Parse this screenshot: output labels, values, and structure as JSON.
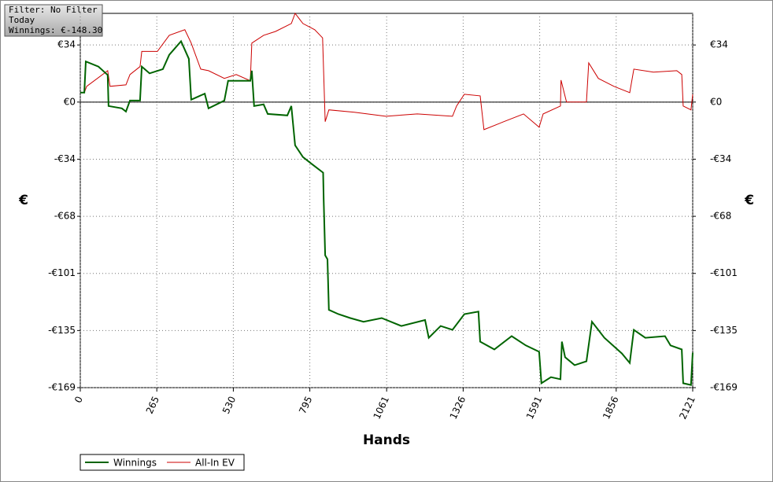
{
  "chart_data": {
    "type": "line",
    "annotations": [
      "Filter: No Filter",
      "Today",
      "Winnings: €-148.30"
    ],
    "xlabel": "Hands",
    "ylabel": "€",
    "y2label": "€",
    "xlim": [
      0,
      2121
    ],
    "ylim": [
      -169,
      52.5
    ],
    "xticks": [
      0,
      265,
      530,
      795,
      1061,
      1326,
      1591,
      1856,
      2121
    ],
    "yticks": [
      {
        "value": 33.8,
        "label": "€34"
      },
      {
        "value": 0,
        "label": "€0"
      },
      {
        "value": -33.8,
        "label": "-€34"
      },
      {
        "value": -67.6,
        "label": "-€68"
      },
      {
        "value": -101.4,
        "label": "-€101"
      },
      {
        "value": -135.2,
        "label": "-€135"
      },
      {
        "value": -169,
        "label": "-€169"
      }
    ],
    "grid": true,
    "zero_line": true,
    "legend": "bottom-left",
    "series": [
      {
        "name": "Winnings",
        "color": "#006400",
        "x": [
          0,
          14,
          19,
          63,
          95,
          98,
          144,
          158,
          172,
          207,
          213,
          240,
          286,
          308,
          349,
          376,
          384,
          431,
          444,
          499,
          512,
          589,
          594,
          602,
          635,
          649,
          717,
          731,
          744,
          771,
          799,
          841,
          843,
          848,
          856,
          861,
          894,
          935,
          981,
          1044,
          1112,
          1194,
          1207,
          1248,
          1289,
          1330,
          1379,
          1385,
          1434,
          1494,
          1543,
          1589,
          1597,
          1630,
          1663,
          1668,
          1679,
          1712,
          1753,
          1772,
          1815,
          1876,
          1903,
          1917,
          1957,
          2025,
          2044,
          2083,
          2088,
          2115,
          2121
        ],
        "values": [
          5.6,
          5.6,
          24,
          21,
          16,
          -2.3,
          -3.7,
          -5.6,
          0.9,
          0.9,
          21,
          17,
          19.5,
          28,
          36,
          25.6,
          1.4,
          5,
          -3.7,
          0.9,
          12.6,
          12.6,
          18.6,
          -2.3,
          -1.4,
          -7,
          -7.9,
          -2.3,
          -25.6,
          -32.5,
          -36.3,
          -41.8,
          -58,
          -90.7,
          -93,
          -123,
          -125.5,
          -127.8,
          -130,
          -127.8,
          -132.5,
          -129,
          -139.5,
          -132.5,
          -134.8,
          -125.5,
          -124,
          -141.8,
          -146.4,
          -138.5,
          -144,
          -147.8,
          -166.4,
          -162.8,
          -164,
          -141.8,
          -151,
          -155.7,
          -153.4,
          -130,
          -139.5,
          -148.8,
          -154.4,
          -134.8,
          -139.5,
          -138.5,
          -144,
          -146.4,
          -166.4,
          -167.4,
          -148.3
        ]
      },
      {
        "name": "All-In EV",
        "color": "#cc0000",
        "x": [
          0,
          14,
          22,
          95,
          103,
          158,
          172,
          207,
          213,
          267,
          308,
          362,
          384,
          417,
          444,
          499,
          540,
          589,
          594,
          635,
          676,
          731,
          744,
          771,
          812,
          839,
          848,
          861,
          949,
          1058,
          1167,
          1289,
          1303,
          1330,
          1385,
          1398,
          1467,
          1535,
          1589,
          1603,
          1663,
          1665,
          1684,
          1753,
          1761,
          1794,
          1848,
          1903,
          1917,
          1985,
          2066,
          2083,
          2088,
          2115,
          2121
        ],
        "values": [
          5.6,
          5.6,
          9.3,
          18.6,
          9.3,
          10.2,
          16.3,
          21,
          30,
          30,
          39.5,
          42.8,
          34.9,
          19.5,
          18.6,
          14,
          16.3,
          12.6,
          34.9,
          39.5,
          41.8,
          46.5,
          52.5,
          46.5,
          42.8,
          38,
          -11.6,
          -4.6,
          -6,
          -8.4,
          -7,
          -8.4,
          -2.3,
          4.6,
          3.7,
          -16.3,
          -11.6,
          -7,
          -14.9,
          -7,
          -2.3,
          13,
          0,
          0,
          23.2,
          14,
          9.3,
          5.6,
          19.5,
          17.7,
          18.6,
          16.3,
          -2.3,
          -4.6,
          4.6
        ]
      }
    ]
  }
}
